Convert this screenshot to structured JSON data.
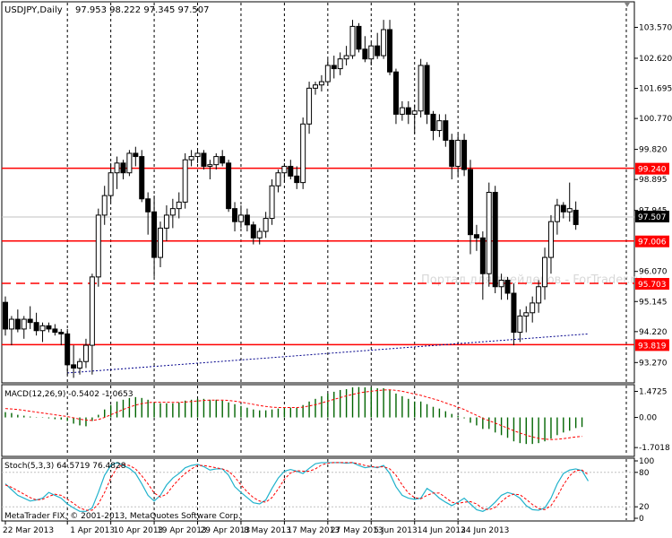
{
  "header": {
    "symbol": "USDJPY,Daily",
    "ohlc": "97.953 98.222 97.345 97.507"
  },
  "watermark": "Портал для трейдеров - ForTrader.ru",
  "copyright": "MetaTrader FIX, © 2001-2013, MetaQuotes Software Corp.",
  "colors": {
    "background": "#ffffff",
    "grid": "#000000",
    "level": "#ff0000",
    "level_label_bg": "#ff0000",
    "trendline": "#00008b",
    "macd_hist": "#006400",
    "macd_signal": "#ff0000",
    "stoch_main": "#20b2cc",
    "stoch_signal": "#ff0000",
    "watermark": "#d8d8d8"
  },
  "chart_data": [
    {
      "type": "candlestick",
      "title": "USDJPY,Daily",
      "ylim": [
        92.7,
        104.3
      ],
      "y_ticks": [
        "103.570",
        "102.620",
        "101.695",
        "100.770",
        "99.820",
        "98.895",
        "97.945",
        "96.070",
        "95.145",
        "94.220",
        "93.270"
      ],
      "x_ticks": [
        "22 Mar 2013",
        "1 Apr 2013",
        "10 Apr 2013",
        "19 Apr 2013",
        "29 Apr 2013",
        "8 May 2013",
        "17 May 2013",
        "27 May 2013",
        "5 Jun 2013",
        "14 Jun 2013",
        "24 Jun 2013"
      ],
      "current_price": "97.507",
      "horizontal_levels": [
        {
          "value": 99.24,
          "label": "99.240",
          "style": "solid"
        },
        {
          "value": 97.006,
          "label": "97.006",
          "style": "solid"
        },
        {
          "value": 95.703,
          "label": "95.703",
          "style": "dashed"
        },
        {
          "value": 93.819,
          "label": "93.819",
          "style": "solid"
        }
      ],
      "trendline": [
        {
          "bar": 10,
          "value": 92.95
        },
        {
          "bar": 94,
          "value": 94.15
        }
      ],
      "candles": [
        [
          95.12,
          95.3,
          94.1,
          94.3
        ],
        [
          94.3,
          94.7,
          93.8,
          94.6
        ],
        [
          94.6,
          94.9,
          94.2,
          94.3
        ],
        [
          94.3,
          94.7,
          94.0,
          94.6
        ],
        [
          94.6,
          95.0,
          94.3,
          94.5
        ],
        [
          94.5,
          94.8,
          94.1,
          94.25
        ],
        [
          94.25,
          94.5,
          93.9,
          94.4
        ],
        [
          94.4,
          94.5,
          94.2,
          94.3
        ],
        [
          94.3,
          94.45,
          94.1,
          94.2
        ],
        [
          94.2,
          94.3,
          93.8,
          94.15
        ],
        [
          94.15,
          94.3,
          92.9,
          93.2
        ],
        [
          93.2,
          93.8,
          92.8,
          93.1
        ],
        [
          93.1,
          93.4,
          92.9,
          93.3
        ],
        [
          93.3,
          94.0,
          93.1,
          93.8
        ],
        [
          93.8,
          96.0,
          92.9,
          95.9
        ],
        [
          95.9,
          98.0,
          95.6,
          97.8
        ],
        [
          97.8,
          98.7,
          97.5,
          98.4
        ],
        [
          98.4,
          99.4,
          98.2,
          99.1
        ],
        [
          99.1,
          99.6,
          98.6,
          99.4
        ],
        [
          99.4,
          99.5,
          98.9,
          99.1
        ],
        [
          99.1,
          99.8,
          99.0,
          99.7
        ],
        [
          99.7,
          99.9,
          99.3,
          99.6
        ],
        [
          99.6,
          99.8,
          98.2,
          98.3
        ],
        [
          98.3,
          98.5,
          97.2,
          97.9
        ],
        [
          97.9,
          98.4,
          95.9,
          96.5
        ],
        [
          96.5,
          97.6,
          96.2,
          97.4
        ],
        [
          97.4,
          98.1,
          97.0,
          97.8
        ],
        [
          97.8,
          98.3,
          97.4,
          98.0
        ],
        [
          98.0,
          98.5,
          97.7,
          98.2
        ],
        [
          98.2,
          99.7,
          98.0,
          99.5
        ],
        [
          99.5,
          99.8,
          99.3,
          99.6
        ],
        [
          99.6,
          99.85,
          99.4,
          99.7
        ],
        [
          99.7,
          99.8,
          99.2,
          99.3
        ],
        [
          99.3,
          99.5,
          98.9,
          99.35
        ],
        [
          99.35,
          99.7,
          99.2,
          99.6
        ],
        [
          99.6,
          99.8,
          99.3,
          99.4
        ],
        [
          99.4,
          99.5,
          97.9,
          98.0
        ],
        [
          98.0,
          98.2,
          97.3,
          97.6
        ],
        [
          97.6,
          98.1,
          97.4,
          97.8
        ],
        [
          97.8,
          98.0,
          97.3,
          97.5
        ],
        [
          97.5,
          97.6,
          96.9,
          97.1
        ],
        [
          97.1,
          97.4,
          96.9,
          97.3
        ],
        [
          97.3,
          97.9,
          97.1,
          97.7
        ],
        [
          97.7,
          98.9,
          97.5,
          98.7
        ],
        [
          98.7,
          99.2,
          98.5,
          99.1
        ],
        [
          99.1,
          99.4,
          98.8,
          99.3
        ],
        [
          99.3,
          99.5,
          98.9,
          99.0
        ],
        [
          99.0,
          99.3,
          98.6,
          98.8
        ],
        [
          98.8,
          100.8,
          98.6,
          100.6
        ],
        [
          100.6,
          101.9,
          100.3,
          101.7
        ],
        [
          101.7,
          101.9,
          101.5,
          101.8
        ],
        [
          101.8,
          102.1,
          101.6,
          101.9
        ],
        [
          101.9,
          102.6,
          101.8,
          102.4
        ],
        [
          102.4,
          102.7,
          102.0,
          102.3
        ],
        [
          102.3,
          102.8,
          102.1,
          102.6
        ],
        [
          102.6,
          103.0,
          102.4,
          102.7
        ],
        [
          102.7,
          103.8,
          102.6,
          103.6
        ],
        [
          103.6,
          103.7,
          102.8,
          102.9
        ],
        [
          102.9,
          103.3,
          102.5,
          102.6
        ],
        [
          102.6,
          103.1,
          102.4,
          103.0
        ],
        [
          103.0,
          103.4,
          102.6,
          102.7
        ],
        [
          102.7,
          103.8,
          102.6,
          103.5
        ],
        [
          103.5,
          103.8,
          102.1,
          102.2
        ],
        [
          102.2,
          102.3,
          100.6,
          100.9
        ],
        [
          100.9,
          101.3,
          100.7,
          101.1
        ],
        [
          101.1,
          101.3,
          100.6,
          100.9
        ],
        [
          100.9,
          101.2,
          100.3,
          101.0
        ],
        [
          101.0,
          102.6,
          100.8,
          102.4
        ],
        [
          102.4,
          102.5,
          100.6,
          100.9
        ],
        [
          100.9,
          101.0,
          100.1,
          100.4
        ],
        [
          100.4,
          100.9,
          100.2,
          100.7
        ],
        [
          100.7,
          100.9,
          99.9,
          100.1
        ],
        [
          100.1,
          100.3,
          98.9,
          99.3
        ],
        [
          99.3,
          100.3,
          99.0,
          100.1
        ],
        [
          100.1,
          100.3,
          99.0,
          99.2
        ],
        [
          99.2,
          99.5,
          96.6,
          97.2
        ],
        [
          97.2,
          97.5,
          96.7,
          97.1
        ],
        [
          97.1,
          97.3,
          95.2,
          96.0
        ],
        [
          96.0,
          98.8,
          95.6,
          98.5
        ],
        [
          98.5,
          98.7,
          95.4,
          95.6
        ],
        [
          95.6,
          96.0,
          95.2,
          95.8
        ],
        [
          95.8,
          95.9,
          95.2,
          95.4
        ],
        [
          95.4,
          95.7,
          93.8,
          94.2
        ],
        [
          94.2,
          94.9,
          93.9,
          94.7
        ],
        [
          94.7,
          95.0,
          94.2,
          94.8
        ],
        [
          94.8,
          95.3,
          94.5,
          95.1
        ],
        [
          95.1,
          95.8,
          94.8,
          95.6
        ],
        [
          95.6,
          96.8,
          95.2,
          96.5
        ],
        [
          96.5,
          97.8,
          96.0,
          97.6
        ],
        [
          97.6,
          98.3,
          97.2,
          98.1
        ],
        [
          98.1,
          98.2,
          97.7,
          97.9
        ],
        [
          97.9,
          98.8,
          97.6,
          98.0
        ],
        [
          97.95,
          98.22,
          97.35,
          97.51
        ]
      ]
    },
    {
      "type": "bar",
      "title": "MACD(12,26,9) -0.5402 -1.0653",
      "ylim": [
        -2.1,
        1.75
      ],
      "y_ticks": [
        "1.4725",
        "0.00",
        "-1.7018"
      ],
      "macd_hist": [
        0.3,
        0.25,
        0.15,
        0.1,
        0.05,
        0.02,
        -0.02,
        -0.05,
        -0.1,
        -0.12,
        -0.2,
        -0.35,
        -0.45,
        -0.5,
        -0.2,
        0.15,
        0.45,
        0.7,
        0.9,
        1.0,
        1.1,
        1.15,
        1.1,
        1.0,
        0.85,
        0.8,
        0.8,
        0.8,
        0.85,
        0.95,
        1.0,
        1.05,
        1.05,
        1.0,
        1.0,
        0.95,
        0.85,
        0.75,
        0.65,
        0.55,
        0.45,
        0.4,
        0.4,
        0.45,
        0.5,
        0.55,
        0.55,
        0.55,
        0.7,
        0.9,
        1.05,
        1.2,
        1.35,
        1.45,
        1.55,
        1.6,
        1.7,
        1.72,
        1.7,
        1.7,
        1.65,
        1.65,
        1.55,
        1.35,
        1.2,
        1.05,
        0.9,
        0.9,
        0.75,
        0.6,
        0.5,
        0.35,
        0.2,
        0.1,
        -0.05,
        -0.3,
        -0.45,
        -0.65,
        -0.65,
        -0.85,
        -1.0,
        -1.15,
        -1.35,
        -1.45,
        -1.5,
        -1.5,
        -1.45,
        -1.35,
        -1.2,
        -1.0,
        -0.85,
        -0.75,
        -0.6,
        -0.54
      ],
      "signal": [
        0.5,
        0.48,
        0.45,
        0.4,
        0.35,
        0.3,
        0.25,
        0.2,
        0.15,
        0.1,
        0.05,
        -0.02,
        -0.1,
        -0.15,
        -0.17,
        -0.12,
        0.0,
        0.15,
        0.3,
        0.45,
        0.58,
        0.7,
        0.78,
        0.84,
        0.86,
        0.86,
        0.86,
        0.85,
        0.85,
        0.87,
        0.9,
        0.93,
        0.96,
        0.98,
        0.98,
        0.98,
        0.96,
        0.92,
        0.87,
        0.8,
        0.74,
        0.67,
        0.62,
        0.58,
        0.56,
        0.56,
        0.56,
        0.56,
        0.58,
        0.65,
        0.72,
        0.82,
        0.92,
        1.02,
        1.12,
        1.22,
        1.3,
        1.38,
        1.44,
        1.48,
        1.52,
        1.55,
        1.56,
        1.53,
        1.48,
        1.4,
        1.32,
        1.25,
        1.15,
        1.05,
        0.95,
        0.82,
        0.7,
        0.58,
        0.45,
        0.28,
        0.12,
        -0.05,
        -0.18,
        -0.32,
        -0.46,
        -0.6,
        -0.75,
        -0.88,
        -1.0,
        -1.1,
        -1.18,
        -1.22,
        -1.25,
        -1.23,
        -1.2,
        -1.15,
        -1.1,
        -1.07
      ]
    },
    {
      "type": "line",
      "title": "Stoch(5,3,3) 64.5719 76.4828",
      "ylim": [
        0,
        100
      ],
      "y_ticks": [
        "100",
        "80",
        "20",
        "0"
      ],
      "main": [
        60,
        50,
        40,
        35,
        30,
        32,
        35,
        45,
        40,
        35,
        25,
        18,
        12,
        12,
        18,
        45,
        75,
        92,
        97,
        92,
        87,
        78,
        60,
        40,
        30,
        40,
        58,
        70,
        78,
        88,
        92,
        94,
        90,
        84,
        86,
        86,
        75,
        55,
        45,
        36,
        27,
        25,
        32,
        52,
        70,
        82,
        85,
        82,
        78,
        87,
        95,
        97,
        97,
        97,
        97,
        96,
        97,
        92,
        88,
        90,
        88,
        92,
        78,
        55,
        40,
        35,
        33,
        35,
        52,
        45,
        35,
        28,
        22,
        28,
        35,
        25,
        15,
        12,
        18,
        28,
        40,
        45,
        42,
        35,
        22,
        15,
        14,
        18,
        35,
        60,
        78,
        84,
        86,
        83,
        65
      ],
      "signal": [
        58,
        54,
        48,
        42,
        36,
        32,
        33,
        38,
        42,
        40,
        33,
        26,
        18,
        14,
        14,
        25,
        45,
        70,
        88,
        94,
        92,
        86,
        74,
        60,
        44,
        37,
        42,
        56,
        68,
        78,
        86,
        92,
        92,
        90,
        88,
        86,
        82,
        72,
        58,
        46,
        36,
        30,
        28,
        36,
        51,
        68,
        79,
        83,
        82,
        82,
        86,
        93,
        96,
        97,
        97,
        97,
        97,
        95,
        92,
        90,
        89,
        90,
        86,
        75,
        58,
        44,
        36,
        34,
        40,
        44,
        44,
        36,
        28,
        26,
        28,
        29,
        25,
        17,
        15,
        19,
        29,
        38,
        42,
        41,
        33,
        24,
        17,
        15,
        22,
        38,
        58,
        74,
        83,
        84,
        76
      ]
    }
  ]
}
